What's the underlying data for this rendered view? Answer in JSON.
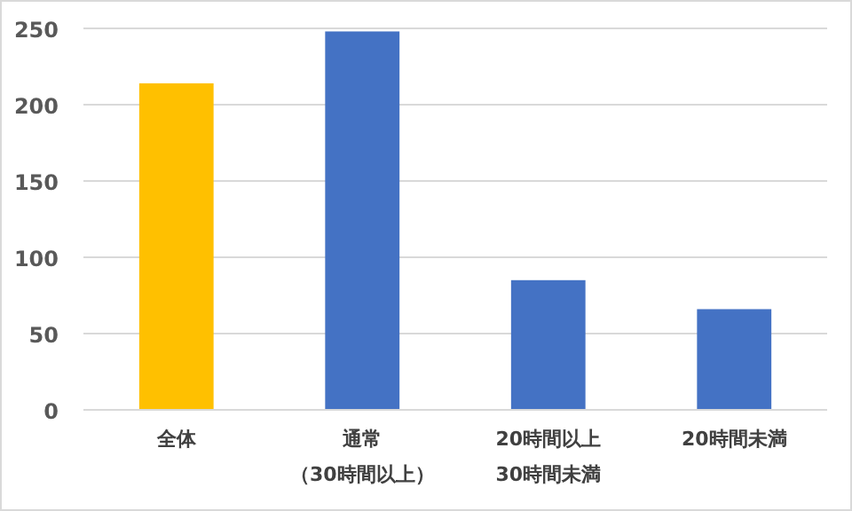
{
  "chart_data": {
    "type": "bar",
    "categories": [
      "全体",
      "通常（30時間以上）",
      "20時間以上30時間未満",
      "20時間未満"
    ],
    "values": [
      214,
      248,
      85,
      66
    ],
    "colors": [
      "#ffc000",
      "#4472c4",
      "#4472c4",
      "#4472c4"
    ],
    "ylim": [
      0,
      250
    ],
    "yticks": [
      0,
      50,
      100,
      150,
      200,
      250
    ],
    "grid": "y",
    "legend": false
  }
}
